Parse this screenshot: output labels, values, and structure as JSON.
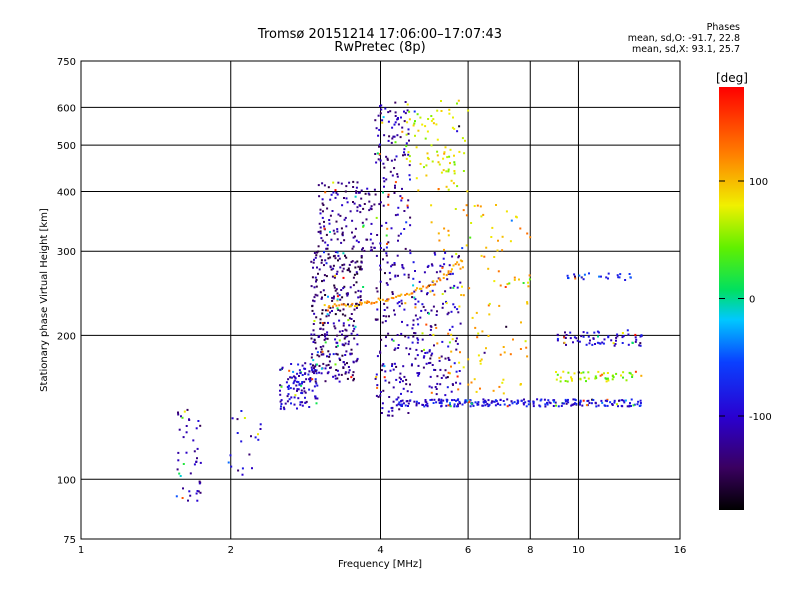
{
  "header": {
    "title_line1": "Tromsø 20151214 17:06:00–17:07:43",
    "title_line2": "RwPretec (8p)",
    "phases_title": "Phases",
    "phases_o": "mean, sd,O: -91.7, 22.8",
    "phases_x": "mean, sd,X:  93.1, 25.7"
  },
  "colorbar": {
    "label": "[deg]",
    "ticks": [
      {
        "value": 100,
        "label": "100"
      },
      {
        "value": 0,
        "label": "0"
      },
      {
        "value": -100,
        "label": "-100"
      }
    ],
    "range": [
      -180,
      180
    ]
  },
  "chart_data": {
    "type": "scatter",
    "title": "Tromsø 20151214 17:06:00–17:07:43",
    "subtitle": "RwPretec (8p)",
    "xlabel": "Frequency [MHz]",
    "ylabel": "Stationary phase Virtual Height [km]",
    "xscale": "log",
    "yscale": "log",
    "xlim": [
      1,
      16
    ],
    "ylim": [
      75,
      750
    ],
    "xticks": [
      1,
      2,
      4,
      6,
      8,
      10,
      16
    ],
    "yticks": [
      75,
      100,
      200,
      300,
      400,
      500,
      600,
      750
    ],
    "grid": true,
    "clusters": [
      {
        "x": [
          1.55,
          1.75
        ],
        "y": [
          90,
          140
        ],
        "phase": -120,
        "count": 45
      },
      {
        "x": [
          1.95,
          2.3
        ],
        "y": [
          100,
          140
        ],
        "phase": -110,
        "count": 20
      },
      {
        "x": [
          2.5,
          3.0
        ],
        "y": [
          140,
          175
        ],
        "phase": -100,
        "count": 120
      },
      {
        "x": [
          2.9,
          3.6
        ],
        "y": [
          160,
          220
        ],
        "phase": -130,
        "count": 160
      },
      {
        "x": [
          2.9,
          3.7
        ],
        "y": [
          220,
          300
        ],
        "phase": -135,
        "count": 160
      },
      {
        "x": [
          3.0,
          3.9
        ],
        "y": [
          300,
          420
        ],
        "phase": -125,
        "count": 130
      },
      {
        "x": [
          3.9,
          4.6
        ],
        "y": [
          135,
          620
        ],
        "phase": -120,
        "count": 260
      },
      {
        "x": [
          4.6,
          5.8
        ],
        "y": [
          150,
          300
        ],
        "phase": -110,
        "count": 160
      },
      {
        "x": [
          4.5,
          6.0
        ],
        "y": [
          400,
          620
        ],
        "phase": 70,
        "count": 90
      },
      {
        "x": [
          5.0,
          8.0
        ],
        "y": [
          150,
          380
        ],
        "phase": 100,
        "count": 130
      },
      {
        "x": [
          4.3,
          13.5
        ],
        "y": [
          142,
          147
        ],
        "phase": -90,
        "count": 240
      },
      {
        "x": [
          9.0,
          13.5
        ],
        "y": [
          190,
          205
        ],
        "phase": -100,
        "count": 70
      },
      {
        "x": [
          9.0,
          13.5
        ],
        "y": [
          160,
          168
        ],
        "phase": 60,
        "count": 50
      },
      {
        "x": [
          9.5,
          13.0
        ],
        "y": [
          260,
          270
        ],
        "phase": -60,
        "count": 25
      }
    ],
    "trace": {
      "x": [
        3.1,
        3.6,
        4.0,
        4.6,
        5.3,
        5.9
      ],
      "y": [
        230,
        232,
        237,
        245,
        262,
        290
      ],
      "phase": 110
    }
  }
}
